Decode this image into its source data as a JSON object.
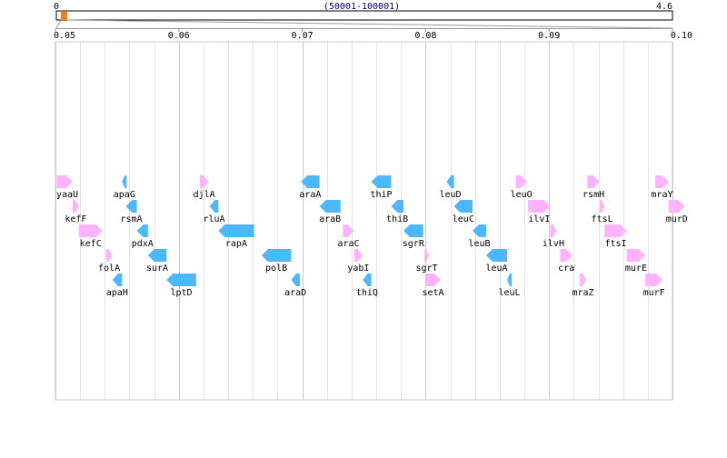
{
  "overview": {
    "start_label": "0",
    "end_label": "4.6",
    "range_label": "(50001-100001)",
    "window_fraction": 0.01
  },
  "axis": {
    "start": 0.05,
    "end": 0.1,
    "ticks": [
      {
        "value": 0.05,
        "label": "0.05"
      },
      {
        "value": 0.06,
        "label": "0.06"
      },
      {
        "value": 0.07,
        "label": "0.07"
      },
      {
        "value": 0.08,
        "label": "0.08"
      },
      {
        "value": 0.09,
        "label": "0.09"
      },
      {
        "value": 0.1,
        "label": "0.10"
      }
    ],
    "minor_step": 0.002
  },
  "colors": {
    "forward": "#ffb3ff",
    "reverse": "#4db8ff",
    "window": "#ff8000",
    "range_text": "#000080",
    "major_grid": "#c8c8c8",
    "minor_grid": "#e4e4e4"
  },
  "genes": [
    {
      "name": "yaaU",
      "start": 0.0501,
      "end": 0.0514,
      "strand": "+",
      "row": 0
    },
    {
      "name": "kefF",
      "start": 0.0514,
      "end": 0.0519,
      "strand": "+",
      "row": 1
    },
    {
      "name": "kefC",
      "start": 0.0519,
      "end": 0.0538,
      "strand": "+",
      "row": 2
    },
    {
      "name": "folA",
      "start": 0.0541,
      "end": 0.0546,
      "strand": "+",
      "row": 3
    },
    {
      "name": "apaH",
      "start": 0.0546,
      "end": 0.0554,
      "strand": "-",
      "row": 4
    },
    {
      "name": "apaG",
      "start": 0.0554,
      "end": 0.0557,
      "strand": "-",
      "row": 0
    },
    {
      "name": "rsmA",
      "start": 0.0557,
      "end": 0.0566,
      "strand": "-",
      "row": 1
    },
    {
      "name": "pdxA",
      "start": 0.0566,
      "end": 0.0575,
      "strand": "-",
      "row": 2
    },
    {
      "name": "surA",
      "start": 0.0575,
      "end": 0.059,
      "strand": "-",
      "row": 3
    },
    {
      "name": "lptD",
      "start": 0.059,
      "end": 0.0614,
      "strand": "-",
      "row": 4
    },
    {
      "name": "djlA",
      "start": 0.0617,
      "end": 0.0624,
      "strand": "+",
      "row": 0
    },
    {
      "name": "rluA",
      "start": 0.0625,
      "end": 0.0632,
      "strand": "-",
      "row": 1
    },
    {
      "name": "rapA",
      "start": 0.0632,
      "end": 0.0661,
      "strand": "-",
      "row": 2
    },
    {
      "name": "polB",
      "start": 0.0667,
      "end": 0.0691,
      "strand": "-",
      "row": 3
    },
    {
      "name": "araD",
      "start": 0.0691,
      "end": 0.0698,
      "strand": "-",
      "row": 4
    },
    {
      "name": "araA",
      "start": 0.0699,
      "end": 0.0714,
      "strand": "-",
      "row": 0
    },
    {
      "name": "araB",
      "start": 0.0714,
      "end": 0.0731,
      "strand": "-",
      "row": 1
    },
    {
      "name": "araC",
      "start": 0.0733,
      "end": 0.0742,
      "strand": "+",
      "row": 2
    },
    {
      "name": "yabI",
      "start": 0.0742,
      "end": 0.0749,
      "strand": "+",
      "row": 3
    },
    {
      "name": "thiQ",
      "start": 0.0749,
      "end": 0.0756,
      "strand": "-",
      "row": 4
    },
    {
      "name": "thiP",
      "start": 0.0756,
      "end": 0.0772,
      "strand": "-",
      "row": 0
    },
    {
      "name": "thiB",
      "start": 0.0772,
      "end": 0.0782,
      "strand": "-",
      "row": 1
    },
    {
      "name": "sgrR",
      "start": 0.0782,
      "end": 0.0798,
      "strand": "-",
      "row": 2
    },
    {
      "name": "sgrT",
      "start": 0.0799,
      "end": 0.08,
      "strand": "+",
      "row": 3
    },
    {
      "name": "setA",
      "start": 0.08,
      "end": 0.0812,
      "strand": "+",
      "row": 4
    },
    {
      "name": "leuD",
      "start": 0.0817,
      "end": 0.0823,
      "strand": "-",
      "row": 0
    },
    {
      "name": "leuC",
      "start": 0.0823,
      "end": 0.0838,
      "strand": "-",
      "row": 1
    },
    {
      "name": "leuB",
      "start": 0.0838,
      "end": 0.0849,
      "strand": "-",
      "row": 2
    },
    {
      "name": "leuA",
      "start": 0.0849,
      "end": 0.0866,
      "strand": "-",
      "row": 3
    },
    {
      "name": "leuL",
      "start": 0.0866,
      "end": 0.0867,
      "strand": "-",
      "row": 4
    },
    {
      "name": "leuO",
      "start": 0.0873,
      "end": 0.0882,
      "strand": "+",
      "row": 0
    },
    {
      "name": "ilvI",
      "start": 0.0883,
      "end": 0.0901,
      "strand": "+",
      "row": 1
    },
    {
      "name": "ilvH",
      "start": 0.0901,
      "end": 0.0906,
      "strand": "+",
      "row": 2
    },
    {
      "name": "cra",
      "start": 0.0909,
      "end": 0.0919,
      "strand": "+",
      "row": 3
    },
    {
      "name": "mraZ",
      "start": 0.0925,
      "end": 0.093,
      "strand": "+",
      "row": 4
    },
    {
      "name": "rsmH",
      "start": 0.0931,
      "end": 0.0941,
      "strand": "+",
      "row": 0
    },
    {
      "name": "ftsL",
      "start": 0.0941,
      "end": 0.0945,
      "strand": "+",
      "row": 1
    },
    {
      "name": "ftsI",
      "start": 0.0945,
      "end": 0.0963,
      "strand": "+",
      "row": 2
    },
    {
      "name": "murE",
      "start": 0.0963,
      "end": 0.0978,
      "strand": "+",
      "row": 3
    },
    {
      "name": "murF",
      "start": 0.0978,
      "end": 0.0992,
      "strand": "+",
      "row": 4
    },
    {
      "name": "mraY",
      "start": 0.0986,
      "end": 0.0997,
      "strand": "+",
      "row": 0
    },
    {
      "name": "murD",
      "start": 0.0997,
      "end": 0.101,
      "strand": "+",
      "row": 1
    }
  ]
}
